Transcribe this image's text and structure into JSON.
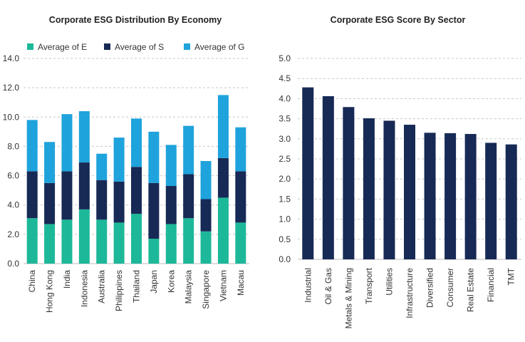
{
  "chart_data": [
    {
      "type": "bar",
      "stacked": true,
      "title": "Corporate ESG Distribution By Economy",
      "categories": [
        "China",
        "Hong Kong",
        "India",
        "Indonesia",
        "Australia",
        "Philippines",
        "Thailand",
        "Japan",
        "Korea",
        "Malaysia",
        "Singapore",
        "Vietnam",
        "Macau"
      ],
      "series": [
        {
          "name": "Average of E",
          "color": "#1db899",
          "values": [
            3.1,
            2.7,
            3.0,
            3.7,
            3.0,
            2.8,
            3.4,
            1.7,
            2.7,
            3.1,
            2.2,
            4.5,
            2.8
          ]
        },
        {
          "name": "Average of S",
          "color": "#172a55",
          "values": [
            3.2,
            2.8,
            3.3,
            3.2,
            2.7,
            2.8,
            3.2,
            3.8,
            2.6,
            3.0,
            2.2,
            2.7,
            3.5
          ]
        },
        {
          "name": "Average of G",
          "color": "#1fa3dc",
          "values": [
            3.5,
            2.8,
            3.9,
            3.5,
            1.8,
            3.0,
            3.3,
            3.5,
            2.8,
            3.3,
            2.6,
            4.3,
            3.0
          ]
        }
      ],
      "yticks": [
        "0.0",
        "2.0",
        "4.0",
        "6.0",
        "8.0",
        "10.0",
        "12.0",
        "14.0"
      ],
      "ylim": [
        0,
        14
      ],
      "grid": true,
      "legend_position": "top"
    },
    {
      "type": "bar",
      "title": "Corporate ESG Score By Sector",
      "categories": [
        "Industrial",
        "Oil & Gas",
        "Metals & Mining",
        "Transport",
        "Utilities",
        "Infrastructure",
        "Diversified",
        "Consumer",
        "Real Estate",
        "Financial",
        "TMT"
      ],
      "values": [
        4.28,
        4.06,
        3.79,
        3.51,
        3.45,
        3.35,
        3.15,
        3.14,
        3.12,
        2.9,
        2.86
      ],
      "color": "#172a55",
      "yticks": [
        "0.0",
        "0.5",
        "1.0",
        "1.5",
        "2.0",
        "2.5",
        "3.0",
        "3.5",
        "4.0",
        "4.5",
        "5.0"
      ],
      "ylim": [
        0,
        5
      ],
      "grid": true
    }
  ]
}
